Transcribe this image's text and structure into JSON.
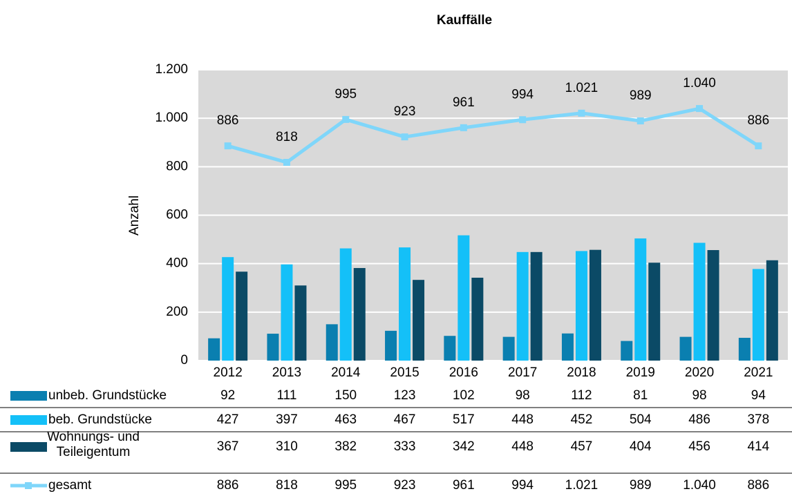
{
  "chart_data": {
    "type": "bar-line",
    "title": "Kauffälle",
    "y_label": "Anzahl",
    "categories": [
      "2012",
      "2013",
      "2014",
      "2015",
      "2016",
      "2017",
      "2018",
      "2019",
      "2020",
      "2021"
    ],
    "series": [
      {
        "name": "unbeb. Grundstücke",
        "type": "bar",
        "color": "#0a7fb0",
        "values": [
          92,
          111,
          150,
          123,
          102,
          98,
          112,
          81,
          98,
          94
        ]
      },
      {
        "name": "beb. Grundstücke",
        "type": "bar",
        "color": "#14c0f8",
        "values": [
          427,
          397,
          463,
          467,
          517,
          448,
          452,
          504,
          486,
          378
        ]
      },
      {
        "name": "Wohnungs- und Teileigentum",
        "type": "bar",
        "color": "#0b4a66",
        "values": [
          367,
          310,
          382,
          333,
          342,
          448,
          457,
          404,
          456,
          414
        ]
      },
      {
        "name": "gesamt",
        "type": "line",
        "color": "#7fd6fa",
        "values": [
          886,
          818,
          995,
          923,
          961,
          994,
          1021,
          989,
          1040,
          886
        ],
        "value_labels": [
          "886",
          "818",
          "995",
          "923",
          "961",
          "994",
          "1.021",
          "989",
          "1.040",
          "886"
        ]
      }
    ],
    "ylim": [
      0,
      1200
    ],
    "yticks": [
      0,
      200,
      400,
      600,
      800,
      {
        "value": 1000,
        "label": "1.000"
      },
      {
        "value": 1200,
        "label": "1.200"
      }
    ],
    "grid": true,
    "data_table": true
  }
}
